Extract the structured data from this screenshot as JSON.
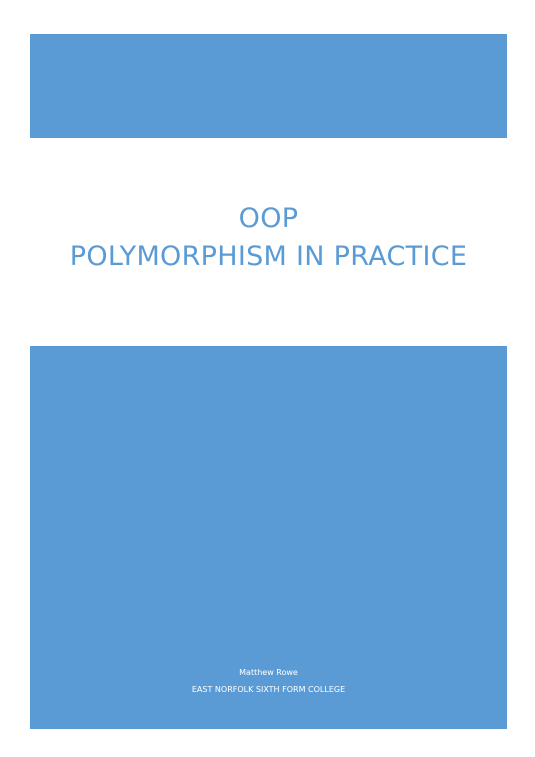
{
  "cover": {
    "accent_color": "#5b9bd5",
    "title": "OOP",
    "subtitle": "POLYMORPHISM IN PRACTICE",
    "author": "Matthew Rowe",
    "organization": "EAST NORFOLK SIXTH FORM COLLEGE"
  }
}
